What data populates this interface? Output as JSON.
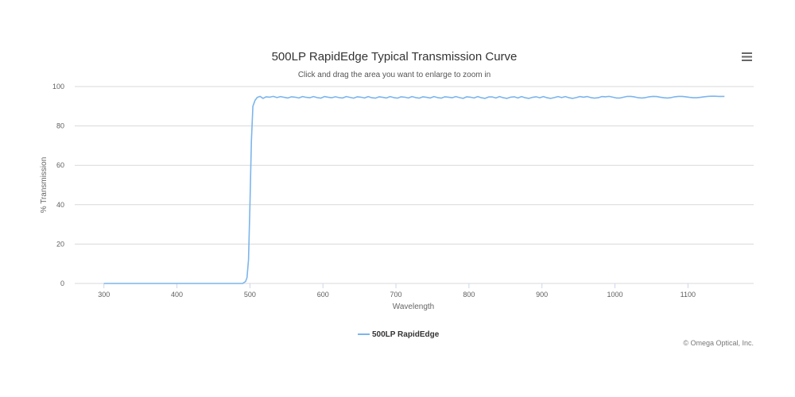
{
  "colors": {
    "series": "#7cb5ec",
    "grid": "#d8d8d8",
    "menu": "#666666"
  },
  "menu": {
    "icon": "hamburger-menu-icon"
  },
  "credits": "© Omega Optical, Inc.",
  "chart_data": {
    "type": "line",
    "title": "500LP RapidEdge Typical Transmission Curve",
    "subtitle": "Click and drag the area you want to enlarge to zoom in",
    "xlabel": "Wavelength",
    "ylabel": "% Transmission",
    "xlim": [
      260,
      1190
    ],
    "ylim": [
      0,
      100
    ],
    "xticks": [
      300,
      400,
      500,
      600,
      700,
      800,
      900,
      1000,
      1100
    ],
    "yticks": [
      0,
      20,
      40,
      60,
      80,
      100
    ],
    "grid": true,
    "legend": "bottom-center",
    "series": [
      {
        "name": "500LP RapidEdge",
        "x": [
          300,
          350,
          400,
          450,
          490,
          494,
          496,
          498,
          500,
          502,
          504,
          507,
          510,
          514,
          518,
          522,
          527,
          532,
          537,
          542,
          547,
          552,
          557,
          562,
          567,
          572,
          577,
          582,
          587,
          592,
          597,
          602,
          607,
          612,
          617,
          622,
          627,
          632,
          637,
          642,
          647,
          652,
          657,
          662,
          667,
          672,
          677,
          682,
          687,
          692,
          697,
          702,
          707,
          712,
          717,
          722,
          727,
          732,
          737,
          742,
          747,
          752,
          757,
          762,
          767,
          772,
          777,
          782,
          787,
          792,
          797,
          802,
          807,
          812,
          817,
          822,
          827,
          832,
          837,
          842,
          847,
          852,
          857,
          862,
          867,
          872,
          877,
          882,
          887,
          892,
          897,
          902,
          907,
          912,
          917,
          922,
          927,
          932,
          937,
          942,
          947,
          952,
          957,
          962,
          967,
          972,
          977,
          982,
          987,
          992,
          997,
          1002,
          1007,
          1012,
          1017,
          1022,
          1027,
          1032,
          1037,
          1042,
          1047,
          1052,
          1057,
          1062,
          1067,
          1072,
          1077,
          1082,
          1087,
          1092,
          1097,
          1102,
          1107,
          1112,
          1117,
          1122,
          1127,
          1132,
          1137,
          1142,
          1147,
          1150
        ],
        "values": [
          0,
          0,
          0,
          0,
          0,
          1,
          3,
          12,
          40,
          72,
          90,
          93,
          94.5,
          95,
          94,
          94.8,
          94.6,
          95.0,
          94.4,
          94.9,
          94.5,
          94.2,
          94.8,
          94.6,
          94.2,
          94.9,
          94.5,
          94.3,
          94.9,
          94.4,
          94.1,
          94.9,
          94.6,
          94.3,
          94.8,
          94.4,
          94.2,
          94.9,
          94.5,
          94.1,
          94.8,
          94.6,
          94.2,
          94.9,
          94.3,
          94.1,
          94.8,
          94.5,
          94.2,
          94.9,
          94.4,
          94.1,
          94.8,
          94.6,
          94.2,
          94.9,
          94.4,
          94.1,
          94.8,
          94.5,
          94.2,
          94.9,
          94.4,
          94.1,
          94.8,
          94.6,
          94.3,
          94.9,
          94.4,
          94.0,
          94.8,
          94.6,
          94.2,
          94.9,
          94.3,
          94.0,
          94.7,
          94.7,
          94.2,
          94.9,
          94.3,
          94.0,
          94.6,
          94.8,
          94.2,
          94.9,
          94.3,
          94.0,
          94.5,
          94.8,
          94.3,
          94.9,
          94.3,
          94.0,
          94.4,
          94.9,
          94.4,
          94.9,
          94.3,
          94.0,
          94.4,
          94.9,
          94.6,
          94.9,
          94.4,
          94.1,
          94.3,
          94.9,
          94.8,
          95.0,
          94.6,
          94.2,
          94.2,
          94.6,
          95.0,
          95.0,
          94.7,
          94.3,
          94.2,
          94.4,
          94.8,
          95.0,
          94.9,
          94.6,
          94.3,
          94.2,
          94.4,
          94.8,
          95.0,
          95.0,
          94.8,
          94.5,
          94.3,
          94.3,
          94.5,
          94.8,
          95.0,
          95.1,
          95.1,
          95.0,
          95.0,
          95.0
        ]
      }
    ]
  }
}
